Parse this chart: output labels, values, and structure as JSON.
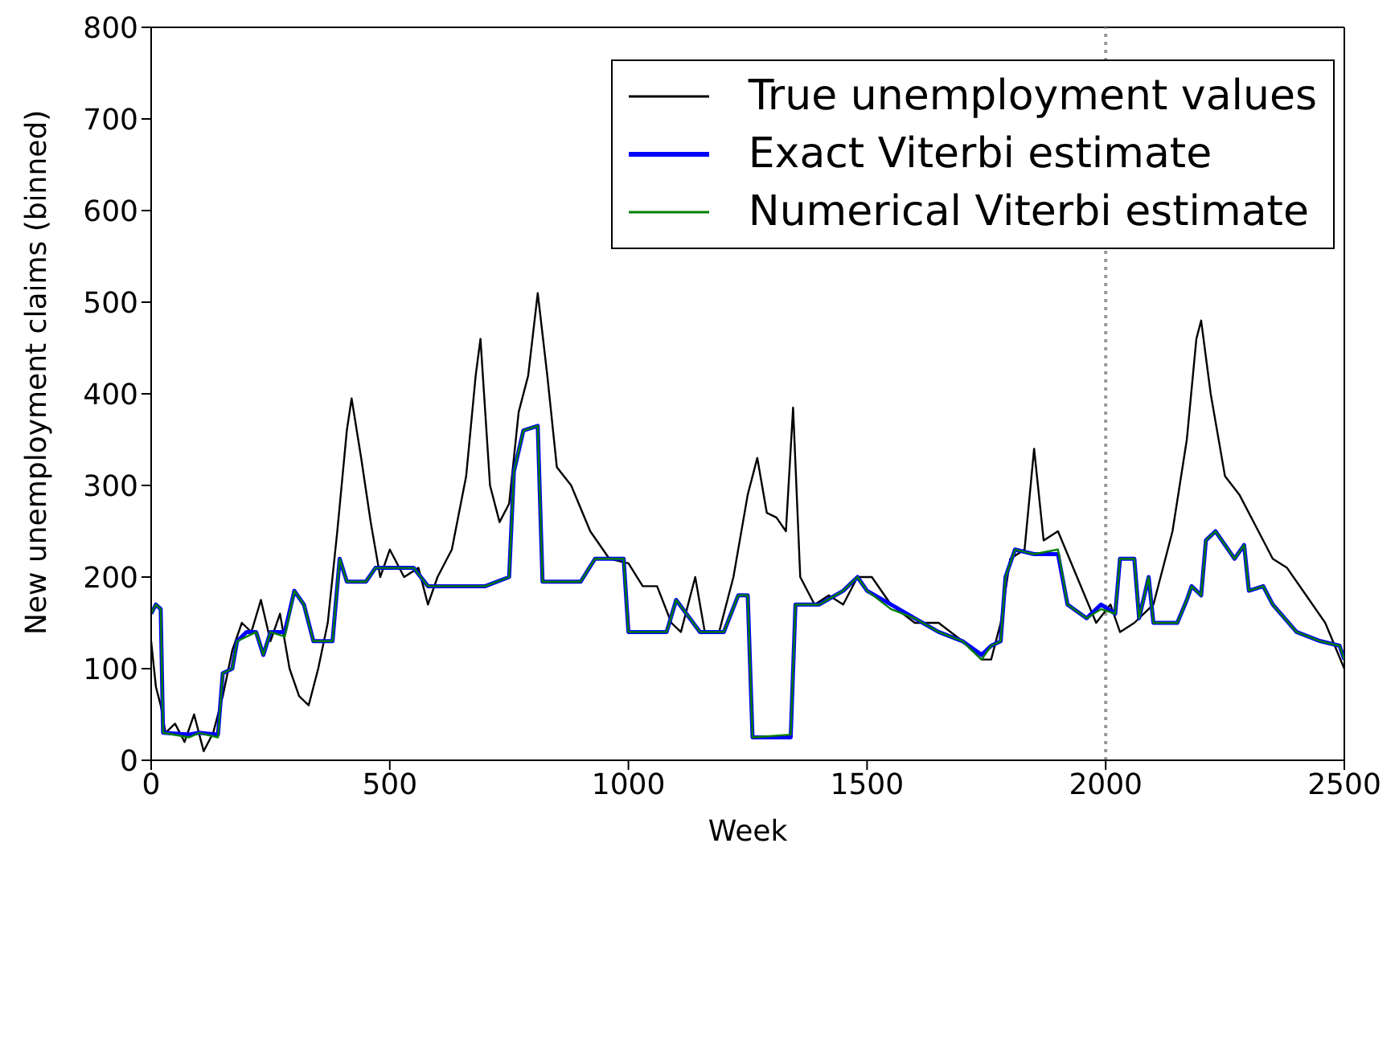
{
  "chart_data": {
    "type": "line",
    "xlabel": "Week",
    "ylabel": "New unemployment claims (binned)",
    "xlim": [
      0,
      2500
    ],
    "xticks": [
      0,
      500,
      1000,
      1500,
      2000,
      2500
    ],
    "ylim": [
      0,
      800
    ],
    "yticks": [
      0,
      100,
      200,
      300,
      400,
      500,
      600,
      700,
      800
    ],
    "grid": false,
    "legend": "top right",
    "marker": "none",
    "ref_lines": [
      {
        "axis": "x",
        "value": 2000,
        "color": "#999999",
        "line_style": "dotted"
      }
    ],
    "series": [
      {
        "name": "True unemployment values",
        "color": "#000000",
        "x": [
          0,
          10,
          20,
          30,
          50,
          70,
          90,
          110,
          130,
          150,
          170,
          190,
          210,
          230,
          250,
          270,
          290,
          310,
          330,
          350,
          370,
          390,
          410,
          420,
          440,
          460,
          480,
          500,
          530,
          560,
          580,
          600,
          630,
          660,
          680,
          690,
          710,
          730,
          750,
          770,
          790,
          810,
          830,
          850,
          880,
          920,
          960,
          1000,
          1030,
          1060,
          1090,
          1110,
          1140,
          1160,
          1190,
          1220,
          1250,
          1270,
          1290,
          1310,
          1330,
          1345,
          1360,
          1390,
          1420,
          1450,
          1480,
          1510,
          1550,
          1600,
          1650,
          1700,
          1740,
          1760,
          1780,
          1800,
          1830,
          1850,
          1870,
          1900,
          1940,
          1980,
          2010,
          2030,
          2060,
          2100,
          2140,
          2170,
          2190,
          2200,
          2220,
          2250,
          2280,
          2320,
          2350,
          2380,
          2420,
          2460,
          2500
        ],
        "values": [
          130,
          80,
          60,
          30,
          40,
          20,
          50,
          10,
          30,
          70,
          120,
          150,
          140,
          175,
          130,
          160,
          100,
          70,
          60,
          100,
          150,
          250,
          360,
          395,
          330,
          260,
          200,
          230,
          200,
          210,
          170,
          200,
          230,
          310,
          420,
          460,
          300,
          260,
          280,
          380,
          420,
          510,
          420,
          320,
          300,
          250,
          220,
          215,
          190,
          190,
          150,
          140,
          200,
          140,
          140,
          200,
          290,
          330,
          270,
          265,
          250,
          385,
          200,
          170,
          180,
          170,
          200,
          200,
          170,
          150,
          150,
          130,
          110,
          110,
          150,
          220,
          230,
          340,
          240,
          250,
          200,
          150,
          170,
          140,
          150,
          170,
          250,
          350,
          460,
          480,
          400,
          310,
          290,
          250,
          220,
          210,
          180,
          150,
          100
        ]
      },
      {
        "name": "Exact Viterbi estimate",
        "color": "#0000ff",
        "x": [
          0,
          10,
          20,
          25,
          80,
          100,
          140,
          150,
          170,
          180,
          200,
          220,
          235,
          250,
          280,
          300,
          320,
          340,
          380,
          395,
          410,
          450,
          470,
          550,
          580,
          700,
          750,
          760,
          780,
          810,
          820,
          900,
          930,
          990,
          1000,
          1080,
          1100,
          1150,
          1200,
          1230,
          1250,
          1260,
          1340,
          1350,
          1400,
          1450,
          1480,
          1500,
          1550,
          1600,
          1650,
          1700,
          1740,
          1760,
          1780,
          1790,
          1810,
          1850,
          1900,
          1920,
          1960,
          1990,
          2020,
          2030,
          2060,
          2070,
          2090,
          2100,
          2150,
          2170,
          2180,
          2200,
          2210,
          2230,
          2270,
          2290,
          2300,
          2330,
          2350,
          2400,
          2450,
          2490,
          2500
        ],
        "values": [
          160,
          170,
          165,
          30,
          28,
          30,
          28,
          95,
          100,
          130,
          140,
          140,
          115,
          140,
          140,
          185,
          170,
          130,
          130,
          220,
          195,
          195,
          210,
          210,
          190,
          190,
          200,
          315,
          360,
          365,
          195,
          195,
          220,
          220,
          140,
          140,
          175,
          140,
          140,
          180,
          180,
          25,
          25,
          170,
          170,
          185,
          200,
          185,
          170,
          155,
          140,
          130,
          115,
          125,
          130,
          200,
          230,
          225,
          225,
          170,
          155,
          170,
          160,
          220,
          220,
          155,
          200,
          150,
          150,
          175,
          190,
          180,
          240,
          250,
          220,
          235,
          185,
          190,
          170,
          140,
          130,
          125,
          110
        ]
      },
      {
        "name": "Numerical Viterbi estimate",
        "color": "#008000",
        "x": [
          0,
          10,
          20,
          25,
          80,
          100,
          140,
          150,
          170,
          180,
          200,
          220,
          235,
          250,
          280,
          300,
          320,
          340,
          380,
          395,
          410,
          450,
          470,
          550,
          580,
          700,
          750,
          760,
          780,
          810,
          820,
          900,
          930,
          990,
          1000,
          1080,
          1100,
          1150,
          1200,
          1230,
          1250,
          1260,
          1340,
          1350,
          1400,
          1450,
          1480,
          1500,
          1550,
          1600,
          1650,
          1700,
          1740,
          1760,
          1780,
          1790,
          1810,
          1850,
          1900,
          1920,
          1960,
          1990,
          2020,
          2030,
          2060,
          2070,
          2090,
          2100,
          2150,
          2170,
          2180,
          2200,
          2210,
          2230,
          2270,
          2290,
          2300,
          2330,
          2350,
          2400,
          2450,
          2490,
          2500
        ],
        "values": [
          160,
          170,
          165,
          30,
          25,
          30,
          25,
          95,
          100,
          130,
          135,
          140,
          115,
          140,
          135,
          185,
          170,
          130,
          130,
          220,
          195,
          195,
          210,
          210,
          190,
          190,
          200,
          315,
          360,
          365,
          195,
          195,
          220,
          220,
          140,
          140,
          175,
          140,
          140,
          180,
          180,
          25,
          28,
          170,
          170,
          185,
          200,
          185,
          165,
          155,
          140,
          130,
          110,
          125,
          130,
          200,
          230,
          225,
          230,
          170,
          155,
          165,
          160,
          220,
          220,
          155,
          200,
          150,
          150,
          175,
          190,
          180,
          240,
          250,
          220,
          235,
          185,
          190,
          170,
          140,
          130,
          125,
          110
        ]
      }
    ]
  }
}
